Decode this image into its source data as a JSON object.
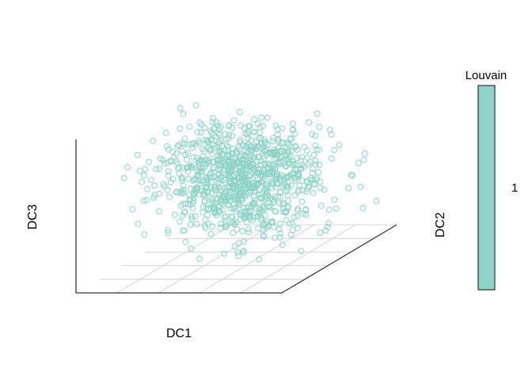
{
  "chart_data": {
    "type": "scatter",
    "projection": "3d",
    "xlabel": "DC1",
    "ylabel": "DC2",
    "zlabel": "DC3",
    "grid": true,
    "point_shape": "open-circle",
    "color_key": {
      "title": "Louvain",
      "labels": [
        "1"
      ],
      "colors": [
        "#8dd3c7"
      ]
    },
    "colors": {
      "points": "#8dd3c7",
      "grid": "#cccccc",
      "axes": "#000000"
    },
    "point_cloud": {
      "n_points": 1000,
      "distribution": "approx. gaussian cloud centered in the box, single cluster"
    }
  }
}
